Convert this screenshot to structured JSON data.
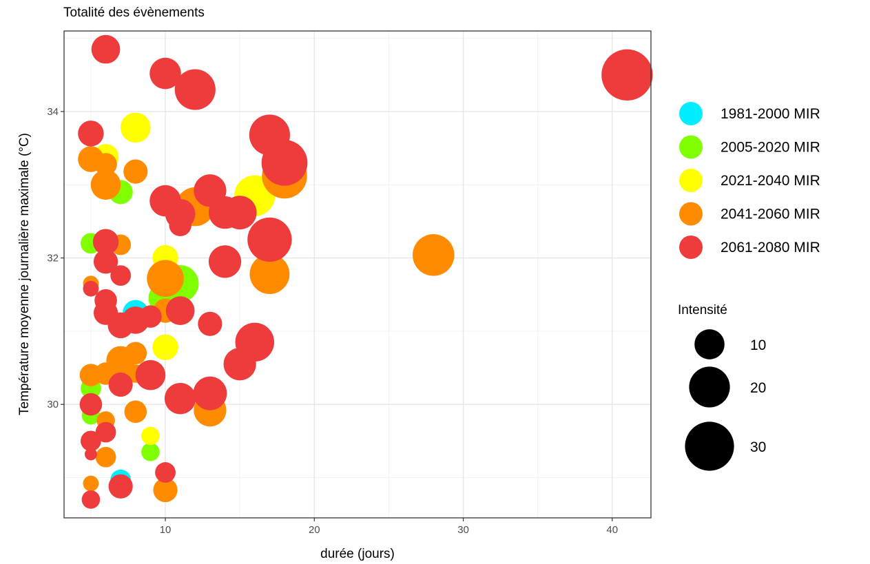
{
  "chart_data": {
    "type": "scatter",
    "title": "Totalité des évènements",
    "xlabel": "durée (jours)",
    "ylabel": "Température moyenne journalière maximale (°C)",
    "xlim": [
      3.2,
      42.6
    ],
    "ylim": [
      28.45,
      35.1
    ],
    "xticks": [
      10,
      20,
      30,
      40
    ],
    "yticks": [
      30,
      32,
      34
    ],
    "grid": true,
    "legend_position": "right",
    "color_legend": [
      {
        "label": "1981-2000 MIR",
        "color": "#00EEFF"
      },
      {
        "label": "2005-2020 MIR",
        "color": "#7FFF00"
      },
      {
        "label": "2021-2040 MIR",
        "color": "#FFFF00"
      },
      {
        "label": "2041-2060 MIR",
        "color": "#FF8C00"
      },
      {
        "label": "2061-2080 MIR",
        "color": "#EE3B3B"
      }
    ],
    "size_legend": {
      "title": "Intensité",
      "values": [
        10,
        20,
        30
      ],
      "labels": [
        "10",
        "20",
        "30"
      ]
    },
    "series": [
      {
        "name": "1981-2000 MIR",
        "color": "#00EEFF",
        "points": [
          [
            8,
            31.25,
            7
          ],
          [
            7,
            28.97,
            4
          ]
        ]
      },
      {
        "name": "2005-2020 MIR",
        "color": "#7FFF00",
        "points": [
          [
            7,
            32.9,
            6
          ],
          [
            5,
            32.2,
            4
          ],
          [
            11,
            31.65,
            16
          ],
          [
            10,
            31.45,
            13
          ],
          [
            5,
            30.22,
            4
          ],
          [
            5,
            29.85,
            3
          ],
          [
            9,
            29.35,
            3
          ]
        ]
      },
      {
        "name": "2021-2040 MIR",
        "color": "#FFFF00",
        "points": [
          [
            6,
            33.38,
            7
          ],
          [
            8,
            33.78,
            10
          ],
          [
            16,
            32.85,
            20
          ],
          [
            10,
            32.0,
            7
          ],
          [
            10,
            30.78,
            7
          ],
          [
            9,
            29.57,
            3
          ]
        ]
      },
      {
        "name": "2041-2060 MIR",
        "color": "#FF8C00",
        "points": [
          [
            5,
            33.35,
            7
          ],
          [
            6,
            33.28,
            5
          ],
          [
            6,
            33.0,
            10
          ],
          [
            8,
            33.18,
            6
          ],
          [
            12,
            32.7,
            18
          ],
          [
            18,
            33.12,
            25
          ],
          [
            7,
            32.18,
            4
          ],
          [
            10,
            31.72,
            16
          ],
          [
            17,
            31.78,
            19
          ],
          [
            28,
            32.04,
            21
          ],
          [
            5,
            31.65,
            2
          ],
          [
            10,
            31.28,
            6
          ],
          [
            7,
            30.6,
            9
          ],
          [
            8,
            30.7,
            5
          ],
          [
            5,
            30.4,
            5
          ],
          [
            6,
            30.42,
            5
          ],
          [
            8,
            30.42,
            3
          ],
          [
            6,
            29.78,
            3
          ],
          [
            8,
            29.9,
            5
          ],
          [
            13,
            29.92,
            12
          ],
          [
            6,
            29.28,
            4
          ],
          [
            5,
            28.92,
            2
          ],
          [
            10,
            28.83,
            6
          ]
        ]
      },
      {
        "name": "2061-2080 MIR",
        "color": "#EE3B3B",
        "points": [
          [
            6,
            34.85,
            9
          ],
          [
            10,
            34.52,
            11
          ],
          [
            12,
            34.3,
            20
          ],
          [
            5,
            33.7,
            7
          ],
          [
            17,
            33.68,
            20
          ],
          [
            18,
            33.3,
            26
          ],
          [
            10,
            32.78,
            11
          ],
          [
            11,
            32.6,
            10
          ],
          [
            13,
            32.92,
            12
          ],
          [
            14,
            32.62,
            12
          ],
          [
            15,
            32.62,
            13
          ],
          [
            11,
            32.45,
            5
          ],
          [
            17,
            32.25,
            24
          ],
          [
            6,
            32.22,
            7
          ],
          [
            6,
            31.95,
            6
          ],
          [
            14,
            31.95,
            12
          ],
          [
            7,
            31.76,
            4
          ],
          [
            5,
            31.58,
            2
          ],
          [
            6,
            31.42,
            5
          ],
          [
            6,
            31.25,
            6
          ],
          [
            7,
            31.08,
            7
          ],
          [
            8,
            31.15,
            8
          ],
          [
            9,
            31.2,
            5
          ],
          [
            11,
            31.28,
            9
          ],
          [
            13,
            31.1,
            6
          ],
          [
            16,
            30.85,
            18
          ],
          [
            15,
            30.55,
            12
          ],
          [
            9,
            30.4,
            10
          ],
          [
            7,
            30.27,
            6
          ],
          [
            11,
            30.08,
            11
          ],
          [
            13,
            30.15,
            13
          ],
          [
            5,
            30.0,
            5
          ],
          [
            6,
            29.62,
            4
          ],
          [
            5,
            29.5,
            4
          ],
          [
            5,
            29.32,
            1
          ],
          [
            10,
            29.07,
            4
          ],
          [
            7,
            28.88,
            6
          ],
          [
            5,
            28.7,
            3
          ],
          [
            41,
            34.5,
            33
          ]
        ]
      }
    ]
  }
}
